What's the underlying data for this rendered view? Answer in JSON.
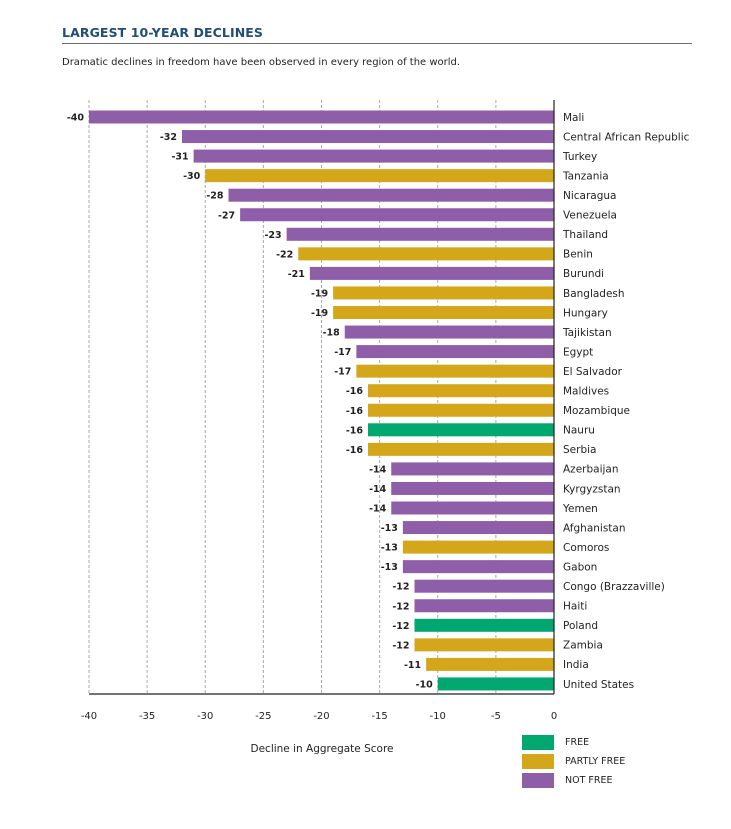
{
  "header": {
    "title": "LARGEST 10-YEAR DECLINES",
    "subtitle": "Dramatic declines in freedom have been observed in every region of the world."
  },
  "colors": {
    "free": "#00a76f",
    "partly_free": "#d4a619",
    "not_free": "#8e5ea8",
    "title": "#1f4e79"
  },
  "chart_data": {
    "type": "bar",
    "orientation": "horizontal",
    "title": "LARGEST 10-YEAR DECLINES",
    "subtitle": "Dramatic declines in freedom have been observed in every region of the world.",
    "xlabel": "Decline in Aggregate Score",
    "ylabel": "",
    "xlim": [
      -40,
      0
    ],
    "xticks": [
      -40,
      -35,
      -30,
      -25,
      -20,
      -15,
      -10,
      -5,
      0
    ],
    "xtick_labels": [
      "-40",
      "-35",
      "-30",
      "-25",
      "-20",
      "-15",
      "-10",
      "-5",
      "0"
    ],
    "grid": "vertical dashed",
    "legend_position": "bottom-right",
    "legend": [
      {
        "key": "free",
        "label": "FREE"
      },
      {
        "key": "partly_free",
        "label": "PARTLY FREE"
      },
      {
        "key": "not_free",
        "label": "NOT FREE"
      }
    ],
    "categories": [
      "Mali",
      "Central African Republic",
      "Turkey",
      "Tanzania",
      "Nicaragua",
      "Venezuela",
      "Thailand",
      "Benin",
      "Burundi",
      "Bangladesh",
      "Hungary",
      "Tajikistan",
      "Egypt",
      "El Salvador",
      "Maldives",
      "Mozambique",
      "Nauru",
      "Serbia",
      "Azerbaijan",
      "Kyrgyzstan",
      "Yemen",
      "Afghanistan",
      "Comoros",
      "Gabon",
      "Congo (Brazzaville)",
      "Haiti",
      "Poland",
      "Zambia",
      "India",
      "United States"
    ],
    "values": [
      -40,
      -32,
      -31,
      -30,
      -28,
      -27,
      -23,
      -22,
      -21,
      -19,
      -19,
      -18,
      -17,
      -17,
      -16,
      -16,
      -16,
      -16,
      -14,
      -14,
      -14,
      -13,
      -13,
      -13,
      -12,
      -12,
      -12,
      -12,
      -11,
      -10
    ],
    "status": [
      "not_free",
      "not_free",
      "not_free",
      "partly_free",
      "not_free",
      "not_free",
      "not_free",
      "partly_free",
      "not_free",
      "partly_free",
      "partly_free",
      "not_free",
      "not_free",
      "partly_free",
      "partly_free",
      "partly_free",
      "free",
      "partly_free",
      "not_free",
      "not_free",
      "not_free",
      "not_free",
      "partly_free",
      "not_free",
      "not_free",
      "not_free",
      "free",
      "partly_free",
      "partly_free",
      "free"
    ]
  }
}
